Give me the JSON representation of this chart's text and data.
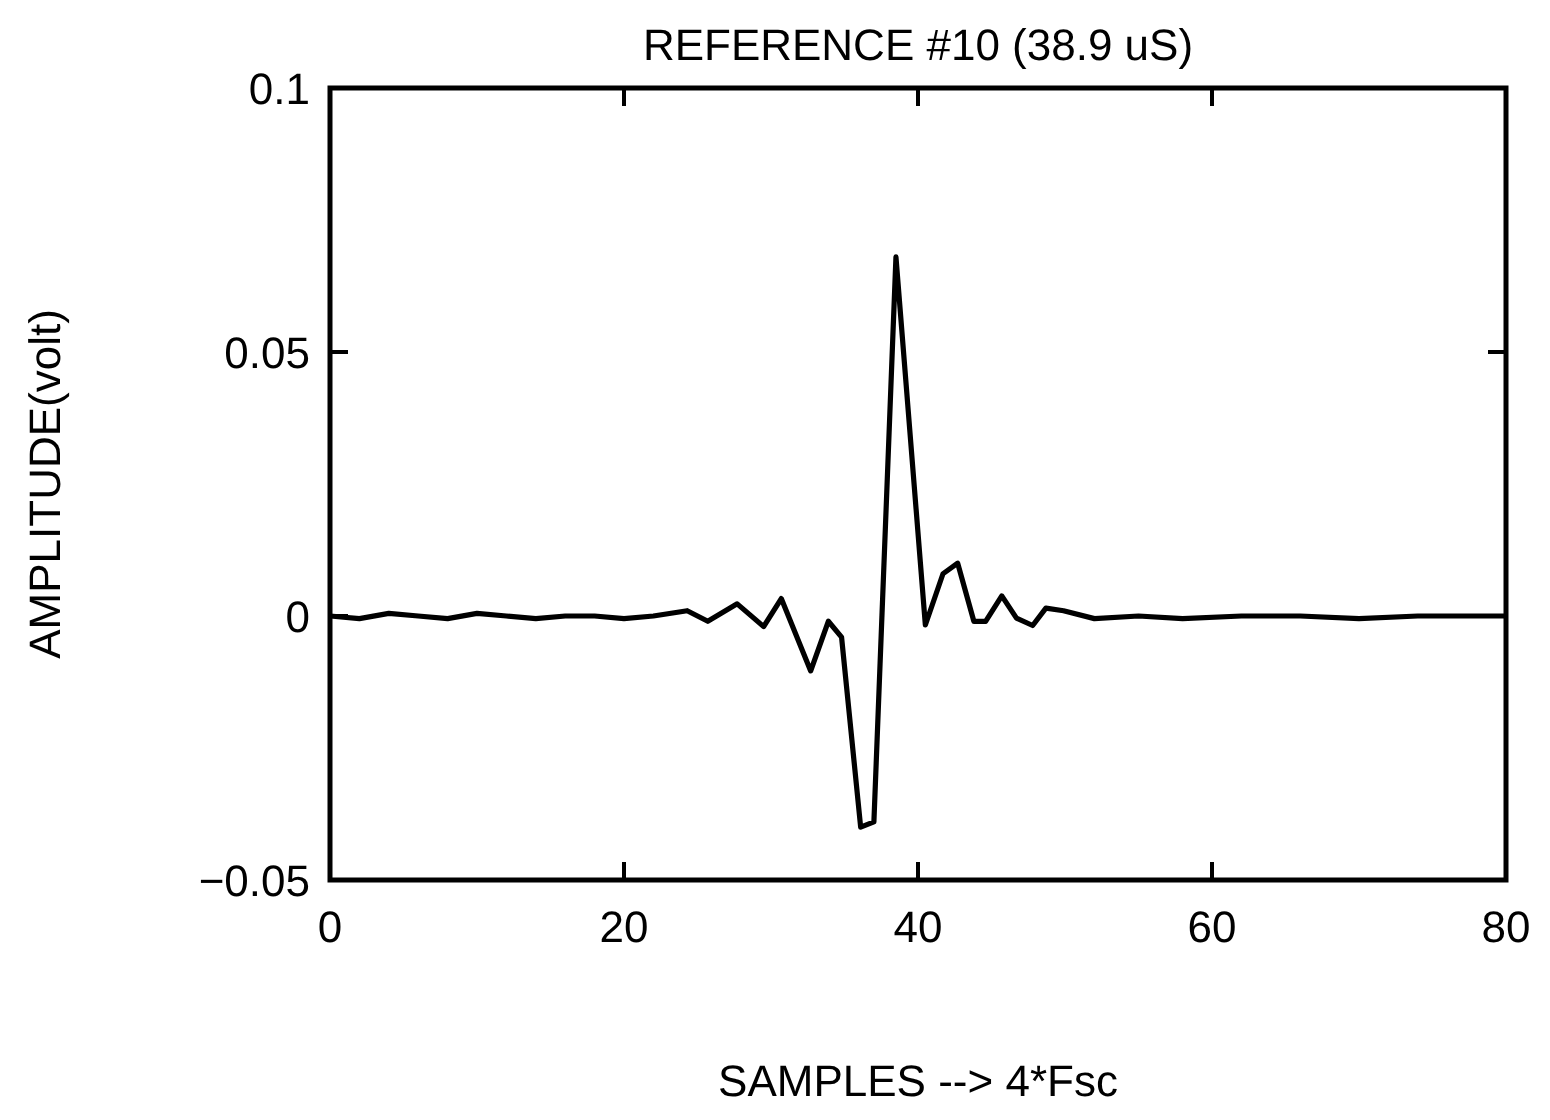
{
  "chart_data": {
    "type": "line",
    "title": "REFERENCE #10 (38.9 uS)",
    "xlabel": "SAMPLES --> 4*Fsc",
    "ylabel": "AMPLITUDE(volt)",
    "xlim": [
      0,
      80
    ],
    "xticks": [
      0,
      20,
      40,
      60,
      80
    ],
    "ylim": [
      -0.05,
      0.1
    ],
    "yticks": [
      {
        "value": -0.05,
        "label": "−0.05"
      },
      0,
      0.05,
      0.1
    ],
    "grid": false,
    "marker": "none",
    "line_style": "solid",
    "series": [
      {
        "color": "#000000",
        "x": [
          0,
          2,
          4,
          6,
          8,
          10,
          12,
          14,
          16,
          18,
          20,
          22,
          24.3,
          25.7,
          27.7,
          29.5,
          30.7,
          32.7,
          33.9,
          34.8,
          36.1,
          37,
          38.5,
          40.5,
          41.7,
          42.7,
          43.8,
          44.6,
          45.7,
          46.7,
          47.8,
          48.7,
          49.9,
          52,
          55,
          58,
          62,
          66,
          70,
          74,
          78,
          80
        ],
        "values": [
          0,
          -0.0005,
          0.0005,
          0,
          -0.0005,
          0.0005,
          0,
          -0.0005,
          0,
          0,
          -0.0005,
          0,
          0.001,
          -0.001,
          0.0023,
          -0.002,
          0.0033,
          -0.0104,
          -0.001,
          -0.004,
          -0.04,
          -0.039,
          0.068,
          -0.0017,
          0.008,
          0.01,
          -0.001,
          -0.001,
          0.0038,
          -0.0004,
          -0.0018,
          0.0015,
          0.001,
          -0.0005,
          0,
          -0.0005,
          0,
          0,
          -0.0005,
          0,
          0,
          0
        ]
      }
    ]
  }
}
